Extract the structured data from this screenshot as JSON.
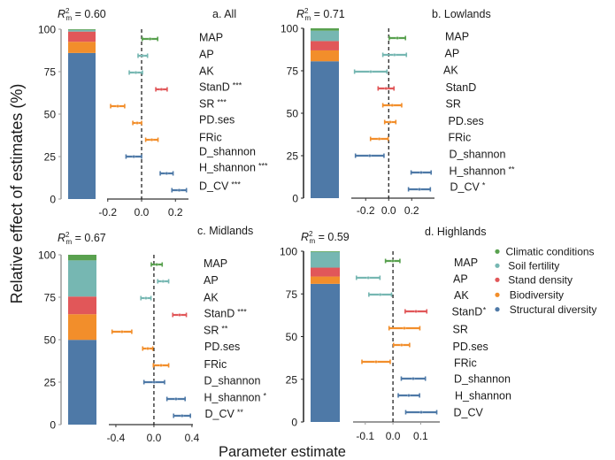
{
  "figure": {
    "ylabel": "Relative effect of estimates (%)",
    "xlabel": "Parameter estimate"
  },
  "groups": [
    {
      "name": "Climatic conditions",
      "color": "#59a14f"
    },
    {
      "name": "Soil fertility",
      "color": "#76b7b2"
    },
    {
      "name": "Stand density",
      "color": "#e15759"
    },
    {
      "name": "Biodiversity",
      "color": "#f28e2b"
    },
    {
      "name": "Structural diversity",
      "color": "#4e79a7"
    }
  ],
  "legend": {
    "placement": "right-middle",
    "items": [
      {
        "label": "Climatic conditions",
        "color": "#59a14f"
      },
      {
        "label": "Soil fertility",
        "color": "#76b7b2"
      },
      {
        "label": "Stand density",
        "color": "#e15759"
      },
      {
        "label": "Biodiversity",
        "color": "#f28e2b"
      },
      {
        "label": "Structural diversity",
        "color": "#4e79a7"
      }
    ]
  },
  "chart_data": [
    {
      "id": "a",
      "type": "bar",
      "title": "a. All",
      "r2m": {
        "symbol": "R",
        "sup": "2",
        "sub": "m",
        "text": " = 0.60",
        "value": 0.6
      },
      "stacked_bar": {
        "ylabel": "Relative effect of estimates (%)",
        "ylim": [
          0,
          100
        ],
        "yticks": [
          0,
          25,
          50,
          75,
          100
        ],
        "ytick_labels": [
          "0",
          "25",
          "50",
          "75",
          "100"
        ],
        "segments": [
          {
            "group": "Structural diversity",
            "value": 86.0
          },
          {
            "group": "Biodiversity",
            "value": 6.6
          },
          {
            "group": "Stand density",
            "value": 6.0
          },
          {
            "group": "Soil fertility",
            "value": 1.0
          },
          {
            "group": "Climatic conditions",
            "value": 0.4
          }
        ]
      },
      "forest": {
        "type": "scatter",
        "xlabel": "Parameter estimate",
        "xlim": [
          -0.204,
          0.277
        ],
        "xticks": [
          -0.2,
          0.0,
          0.2
        ],
        "xtick_labels": [
          "-0.2",
          "0.0",
          "0.2"
        ],
        "reference_line": 0,
        "rows": [
          {
            "label": "MAP",
            "sig": "",
            "group": "Climatic conditions",
            "estimate": 0.05,
            "ci": [
              0.004,
              0.095
            ]
          },
          {
            "label": "AP",
            "sig": "",
            "group": "Soil fertility",
            "estimate": 0.007,
            "ci": [
              -0.021,
              0.035
            ]
          },
          {
            "label": "AK",
            "sig": "",
            "group": "Soil fertility",
            "estimate": -0.034,
            "ci": [
              -0.073,
              0.005
            ]
          },
          {
            "label": "StanD",
            "sig": "***",
            "group": "Stand density",
            "estimate": 0.117,
            "ci": [
              0.084,
              0.151
            ]
          },
          {
            "label": "SR",
            "sig": "***",
            "group": "Biodiversity",
            "estimate": -0.141,
            "ci": [
              -0.183,
              -0.1
            ]
          },
          {
            "label": "PD.ses",
            "sig": "",
            "group": "Biodiversity",
            "estimate": -0.026,
            "ci": [
              -0.052,
              0.0
            ]
          },
          {
            "label": "FRic",
            "sig": "",
            "group": "Biodiversity",
            "estimate": 0.06,
            "ci": [
              0.024,
              0.097
            ]
          },
          {
            "label": "D_shannon",
            "sig": "",
            "group": "Structural diversity",
            "estimate": -0.046,
            "ci": [
              -0.092,
              0.0
            ]
          },
          {
            "label": "H_shannon",
            "sig": "***",
            "group": "Structural diversity",
            "estimate": 0.148,
            "ci": [
              0.11,
              0.186
            ]
          },
          {
            "label": "D_CV",
            "sig": "***",
            "group": "Structural diversity",
            "estimate": 0.222,
            "ci": [
              0.179,
              0.265
            ]
          }
        ]
      }
    },
    {
      "id": "b",
      "type": "bar",
      "title": "b. Lowlands",
      "r2m": {
        "symbol": "R",
        "sup": "2",
        "sub": "m",
        "text": " = 0.71",
        "value": 0.71
      },
      "stacked_bar": {
        "ylabel": "Relative effect of estimates (%)",
        "ylim": [
          0,
          100
        ],
        "yticks": [
          0,
          25,
          50,
          75,
          100
        ],
        "ytick_labels": [
          "0",
          "25",
          "50",
          "75",
          "100"
        ],
        "segments": [
          {
            "group": "Structural diversity",
            "value": 80.6
          },
          {
            "group": "Biodiversity",
            "value": 6.4
          },
          {
            "group": "Stand density",
            "value": 5.5
          },
          {
            "group": "Soil fertility",
            "value": 6.1
          },
          {
            "group": "Climatic conditions",
            "value": 1.4
          }
        ]
      },
      "forest": {
        "type": "scatter",
        "xlabel": "Parameter estimate",
        "xlim": [
          -0.325,
          0.398
        ],
        "xticks": [
          -0.2,
          0.0,
          0.2
        ],
        "xtick_labels": [
          "-0.2",
          "0.0",
          "0.2"
        ],
        "reference_line": 0,
        "rows": [
          {
            "label": "MAP",
            "sig": "",
            "group": "Climatic conditions",
            "estimate": 0.076,
            "ci": [
              0.005,
              0.146
            ]
          },
          {
            "label": "AP",
            "sig": "",
            "group": "Soil fertility",
            "estimate": 0.05,
            "ci": [
              -0.051,
              0.154
            ]
          },
          {
            "label": "AK",
            "sig": "",
            "group": "Soil fertility",
            "estimate": -0.156,
            "ci": [
              -0.297,
              -0.015
            ]
          },
          {
            "label": "StanD",
            "sig": "",
            "group": "Stand density",
            "estimate": -0.023,
            "ci": [
              -0.092,
              0.046
            ]
          },
          {
            "label": "SR",
            "sig": "",
            "group": "Biodiversity",
            "estimate": 0.031,
            "ci": [
              -0.051,
              0.113
            ]
          },
          {
            "label": "PD.ses",
            "sig": "",
            "group": "Biodiversity",
            "estimate": 0.013,
            "ci": [
              -0.035,
              0.062
            ]
          },
          {
            "label": "FRic",
            "sig": "",
            "group": "Biodiversity",
            "estimate": -0.082,
            "ci": [
              -0.158,
              -0.005
            ]
          },
          {
            "label": "D_shannon",
            "sig": "",
            "group": "Structural diversity",
            "estimate": -0.165,
            "ci": [
              -0.289,
              -0.041
            ]
          },
          {
            "label": "H_shannon",
            "sig": "**",
            "group": "Structural diversity",
            "estimate": 0.282,
            "ci": [
              0.195,
              0.369
            ]
          },
          {
            "label": "D_CV",
            "sig": "*",
            "group": "Structural diversity",
            "estimate": 0.267,
            "ci": [
              0.172,
              0.362
            ]
          }
        ]
      }
    },
    {
      "id": "c",
      "type": "bar",
      "title": "c. Midlands",
      "r2m": {
        "symbol": "R",
        "sup": "2",
        "sub": "m",
        "text": " = 0.67",
        "value": 0.67
      },
      "stacked_bar": {
        "ylabel": "Relative effect of estimates (%)",
        "ylim": [
          0,
          100
        ],
        "yticks": [
          0,
          25,
          50,
          75,
          100
        ],
        "ytick_labels": [
          "0",
          "25",
          "50",
          "75",
          "100"
        ],
        "segments": [
          {
            "group": "Structural diversity",
            "value": 49.9
          },
          {
            "group": "Biodiversity",
            "value": 15.1
          },
          {
            "group": "Stand density",
            "value": 10.4
          },
          {
            "group": "Soil fertility",
            "value": 21.3
          },
          {
            "group": "Climatic conditions",
            "value": 3.3
          }
        ]
      },
      "forest": {
        "type": "scatter",
        "xlabel": "Parameter estimate",
        "xlim": [
          -0.474,
          0.41
        ],
        "xticks": [
          -0.4,
          0.0,
          0.4
        ],
        "xtick_labels": [
          "-0.4",
          "0.0",
          "0.4"
        ],
        "reference_line": 0,
        "rows": [
          {
            "label": "MAP",
            "sig": "",
            "group": "Climatic conditions",
            "estimate": 0.03,
            "ci": [
              -0.028,
              0.087
            ]
          },
          {
            "label": "AP",
            "sig": "",
            "group": "Soil fertility",
            "estimate": 0.097,
            "ci": [
              0.04,
              0.155
            ]
          },
          {
            "label": "AK",
            "sig": "",
            "group": "Soil fertility",
            "estimate": -0.084,
            "ci": [
              -0.137,
              -0.031
            ]
          },
          {
            "label": "StanD",
            "sig": "***",
            "group": "Stand density",
            "estimate": 0.27,
            "ci": [
              0.198,
              0.341
            ]
          },
          {
            "label": "SR",
            "sig": "**",
            "group": "Biodiversity",
            "estimate": -0.336,
            "ci": [
              -0.44,
              -0.233
            ]
          },
          {
            "label": "PD.ses",
            "sig": "",
            "group": "Biodiversity",
            "estimate": -0.065,
            "ci": [
              -0.118,
              -0.012
            ]
          },
          {
            "label": "FRic",
            "sig": "",
            "group": "Biodiversity",
            "estimate": 0.075,
            "ci": [
              -0.006,
              0.155
            ]
          },
          {
            "label": "D_shannon",
            "sig": "",
            "group": "Structural diversity",
            "estimate": 0.003,
            "ci": [
              -0.105,
              0.112
            ]
          },
          {
            "label": "H_shannon",
            "sig": "*",
            "group": "Structural diversity",
            "estimate": 0.232,
            "ci": [
              0.137,
              0.328
            ]
          },
          {
            "label": "D_CV",
            "sig": "**",
            "group": "Structural diversity",
            "estimate": 0.296,
            "ci": [
              0.207,
              0.384
            ]
          }
        ]
      }
    },
    {
      "id": "d",
      "type": "bar",
      "title": "d. Highlands",
      "r2m": {
        "symbol": "R",
        "sup": "2",
        "sub": "m",
        "text": " = 0.59",
        "value": 0.59
      },
      "stacked_bar": {
        "ylabel": "Relative effect of estimates (%)",
        "ylim": [
          0,
          100
        ],
        "yticks": [
          0,
          25,
          50,
          75,
          100
        ],
        "ytick_labels": [
          "0",
          "25",
          "50",
          "75",
          "100"
        ],
        "segments": [
          {
            "group": "Structural diversity",
            "value": 80.9
          },
          {
            "group": "Biodiversity",
            "value": 4.3
          },
          {
            "group": "Stand density",
            "value": 5.2
          },
          {
            "group": "Soil fertility",
            "value": 9.2
          },
          {
            "group": "Climatic conditions",
            "value": 0.4
          }
        ]
      },
      "forest": {
        "type": "scatter",
        "xlabel": "Parameter estimate",
        "xlim": [
          -0.144,
          0.169
        ],
        "xticks": [
          -0.1,
          0.0,
          0.1
        ],
        "xtick_labels": [
          "-0.1",
          "0.0",
          "0.1"
        ],
        "reference_line": 0,
        "rows": [
          {
            "label": "MAP",
            "sig": "",
            "group": "Climatic conditions",
            "estimate": -0.001,
            "ci": [
              -0.027,
              0.025
            ]
          },
          {
            "label": "AP",
            "sig": "",
            "group": "Soil fertility",
            "estimate": -0.089,
            "ci": [
              -0.132,
              -0.047
            ]
          },
          {
            "label": "AK",
            "sig": "",
            "group": "Soil fertility",
            "estimate": -0.046,
            "ci": [
              -0.087,
              -0.005
            ]
          },
          {
            "label": "StanD",
            "sig": "*",
            "group": "Stand density",
            "estimate": 0.083,
            "ci": [
              0.044,
              0.122
            ]
          },
          {
            "label": "SR",
            "sig": "",
            "group": "Biodiversity",
            "estimate": 0.041,
            "ci": [
              -0.014,
              0.097
            ]
          },
          {
            "label": "PD.ses",
            "sig": "",
            "group": "Biodiversity",
            "estimate": 0.031,
            "ci": [
              0.002,
              0.06
            ]
          },
          {
            "label": "FRic",
            "sig": "",
            "group": "Biodiversity",
            "estimate": -0.061,
            "ci": [
              -0.112,
              -0.01
            ]
          },
          {
            "label": "D_shannon",
            "sig": "",
            "group": "Structural diversity",
            "estimate": 0.073,
            "ci": [
              0.03,
              0.117
            ]
          },
          {
            "label": "H_shannon",
            "sig": "",
            "group": "Structural diversity",
            "estimate": 0.057,
            "ci": [
              0.019,
              0.096
            ]
          },
          {
            "label": "D_CV",
            "sig": "",
            "group": "Structural diversity",
            "estimate": 0.102,
            "ci": [
              0.046,
              0.158
            ]
          }
        ]
      }
    }
  ]
}
